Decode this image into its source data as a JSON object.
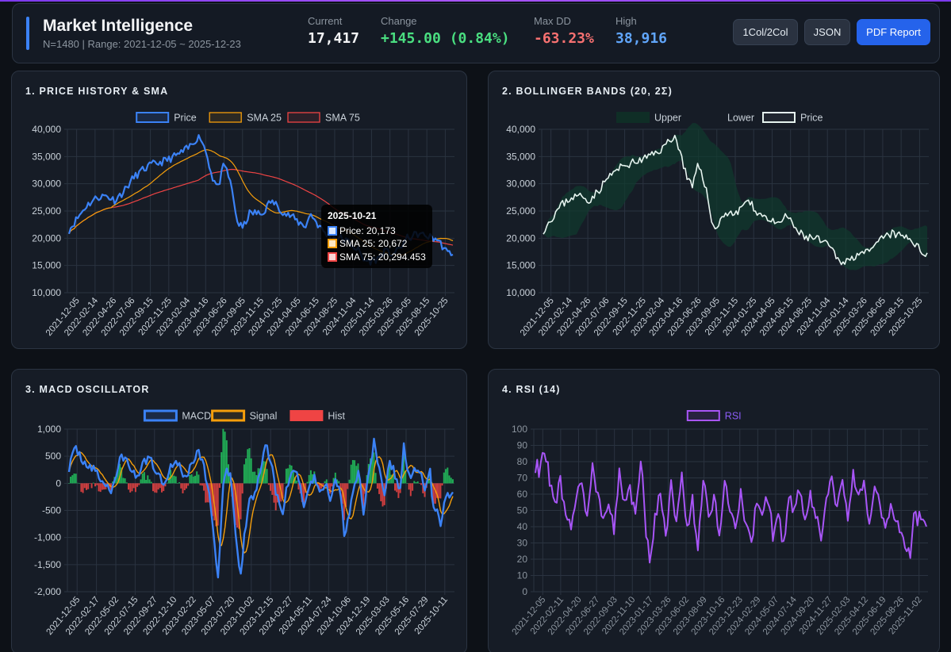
{
  "header": {
    "title": "Market Intelligence",
    "subtitle": "N=1480 | Range: 2021-12-05 ~ 2025-12-23",
    "stats": {
      "current": {
        "label": "Current",
        "value": "17,417"
      },
      "change": {
        "label": "Change",
        "value": "+145.00 (0.84%)"
      },
      "maxdd": {
        "label": "Max DD",
        "value": "-63.23%"
      },
      "high": {
        "label": "High",
        "value": "38,916"
      }
    },
    "buttons": {
      "layout": "1Col/2Col",
      "json": "JSON",
      "pdf": "PDF Report"
    }
  },
  "colors": {
    "price": "#3b82f6",
    "sma25": "#f59e0b",
    "sma75": "#ef4444",
    "bb_price": "#e6f4ef",
    "bb_band": "#0f3b2e",
    "macd": "#3b82f6",
    "signal": "#f59e0b",
    "hist_pos": "#22c55e",
    "hist_neg": "#ef4444",
    "rsi": "#a855f7",
    "green": "#4ade80",
    "red": "#f87171",
    "blue": "#60a5fa"
  },
  "panels": {
    "p1": {
      "title": "1. PRICE HISTORY & SMA"
    },
    "p2": {
      "title": "2. BOLLINGER BANDS (20, 2Σ)"
    },
    "p3": {
      "title": "3. MACD OSCILLATOR"
    },
    "p4": {
      "title": "4. RSI (14)"
    }
  },
  "tooltip": {
    "title": "2025-10-21",
    "rows": [
      "Price: 20,173",
      "SMA 25: 20,672",
      "SMA 75: 20,294.453"
    ]
  },
  "chart_data": [
    {
      "type": "line",
      "title": "1. PRICE HISTORY & SMA",
      "legend": [
        "Price",
        "SMA 25",
        "SMA 75"
      ],
      "ylim": [
        10000,
        40000
      ],
      "yticks": [
        10000,
        15000,
        20000,
        25000,
        30000,
        35000,
        40000
      ],
      "ytick_labels": [
        "10,000",
        "15,000",
        "20,000",
        "25,000",
        "30,000",
        "35,000",
        "40,000"
      ],
      "xtick_labels": [
        "2021-12-05",
        "2022-02-14",
        "2022-04-26",
        "2022-07-06",
        "2022-09-15",
        "2022-11-25",
        "2023-02-04",
        "2023-04-16",
        "2023-06-26",
        "2023-09-05",
        "2023-11-15",
        "2024-01-25",
        "2024-04-05",
        "2024-06-15",
        "2024-08-25",
        "2024-11-04",
        "2025-01-14",
        "2025-03-26",
        "2025-06-05",
        "2025-08-15",
        "2025-10-25"
      ],
      "anchors": [
        [
          0,
          21500
        ],
        [
          5,
          23800
        ],
        [
          10,
          26000
        ],
        [
          16,
          27500
        ],
        [
          21,
          27800
        ],
        [
          26,
          27000
        ],
        [
          31,
          28500
        ],
        [
          37,
          31200
        ],
        [
          42,
          32500
        ],
        [
          47,
          33500
        ],
        [
          52,
          33900
        ],
        [
          57,
          34500
        ],
        [
          63,
          35500
        ],
        [
          68,
          36500
        ],
        [
          73,
          38400
        ],
        [
          75,
          38600
        ],
        [
          78,
          36000
        ],
        [
          82,
          31000
        ],
        [
          85,
          29300
        ],
        [
          88,
          33000
        ],
        [
          90,
          32700
        ],
        [
          93,
          28800
        ],
        [
          96,
          23000
        ],
        [
          99,
          21800
        ],
        [
          103,
          24500
        ],
        [
          106,
          24700
        ],
        [
          110,
          24300
        ],
        [
          115,
          26800
        ],
        [
          119,
          26000
        ],
        [
          123,
          24500
        ],
        [
          127,
          24000
        ],
        [
          131,
          22900
        ],
        [
          135,
          22300
        ],
        [
          138,
          24500
        ],
        [
          142,
          22500
        ],
        [
          146,
          21000
        ],
        [
          149,
          20200
        ],
        [
          155,
          20000
        ],
        [
          160,
          19200
        ],
        [
          165,
          17800
        ],
        [
          168,
          16000
        ],
        [
          172,
          15800
        ],
        [
          176,
          16200
        ],
        [
          180,
          17600
        ],
        [
          184,
          17200
        ],
        [
          187,
          17500
        ],
        [
          193,
          20000
        ],
        [
          199,
          20800
        ],
        [
          205,
          20300
        ],
        [
          210,
          19800
        ],
        [
          213,
          18600
        ],
        [
          216,
          17200
        ],
        [
          219,
          17400
        ]
      ]
    },
    {
      "type": "line",
      "title": "2. BOLLINGER BANDS (20, 2Σ)",
      "legend": [
        "Upper",
        "Lower",
        "Price"
      ],
      "ylim": [
        10000,
        40000
      ],
      "yticks": [
        10000,
        15000,
        20000,
        25000,
        30000,
        35000,
        40000
      ],
      "ytick_labels": [
        "10,000",
        "15,000",
        "20,000",
        "25,000",
        "30,000",
        "35,000",
        "40,000"
      ],
      "xtick_labels": [
        "2021-12-05",
        "2022-02-14",
        "2022-04-26",
        "2022-07-06",
        "2022-09-15",
        "2022-11-25",
        "2023-02-04",
        "2023-04-16",
        "2023-06-26",
        "2023-09-05",
        "2023-11-15",
        "2024-01-25",
        "2024-04-05",
        "2024-06-15",
        "2024-08-25",
        "2024-11-04",
        "2025-01-14",
        "2025-03-26",
        "2025-06-05",
        "2025-08-15",
        "2025-10-25"
      ]
    },
    {
      "type": "line",
      "title": "3. MACD OSCILLATOR",
      "legend": [
        "MACD",
        "Signal",
        "Hist"
      ],
      "ylim": [
        -2000,
        1000
      ],
      "yticks": [
        -2000,
        -1500,
        -1000,
        -500,
        0,
        500,
        1000
      ],
      "ytick_labels": [
        "-2,000",
        "-1,500",
        "-1,000",
        "-500",
        "0",
        "500",
        "1,000"
      ],
      "xtick_labels": [
        "2021-12-05",
        "2022-02-17",
        "2022-05-02",
        "2022-07-15",
        "2022-09-27",
        "2022-12-10",
        "2023-02-22",
        "2023-05-07",
        "2023-07-20",
        "2023-10-02",
        "2023-12-15",
        "2024-02-27",
        "2024-05-11",
        "2024-07-24",
        "2024-10-06",
        "2024-12-19",
        "2025-03-03",
        "2025-05-16",
        "2025-07-29",
        "2025-10-11"
      ],
      "anchors": [
        [
          0,
          300
        ],
        [
          4,
          650
        ],
        [
          8,
          420
        ],
        [
          12,
          300
        ],
        [
          16,
          180
        ],
        [
          20,
          0
        ],
        [
          24,
          -150
        ],
        [
          28,
          300
        ],
        [
          30,
          500
        ],
        [
          34,
          380
        ],
        [
          38,
          70
        ],
        [
          42,
          350
        ],
        [
          46,
          500
        ],
        [
          50,
          200
        ],
        [
          54,
          10
        ],
        [
          58,
          330
        ],
        [
          62,
          400
        ],
        [
          66,
          80
        ],
        [
          70,
          370
        ],
        [
          74,
          600
        ],
        [
          77,
          280
        ],
        [
          80,
          -200
        ],
        [
          83,
          -1100
        ],
        [
          85,
          -1700
        ],
        [
          88,
          -100
        ],
        [
          90,
          250
        ],
        [
          92,
          100
        ],
        [
          95,
          -900
        ],
        [
          98,
          -1750
        ],
        [
          100,
          -1000
        ],
        [
          103,
          -300
        ],
        [
          106,
          -200
        ],
        [
          109,
          200
        ],
        [
          112,
          700
        ],
        [
          115,
          450
        ],
        [
          118,
          -200
        ],
        [
          122,
          -500
        ],
        [
          125,
          0
        ],
        [
          128,
          200
        ],
        [
          131,
          120
        ],
        [
          134,
          -400
        ],
        [
          137,
          -60
        ],
        [
          140,
          100
        ],
        [
          143,
          -150
        ],
        [
          146,
          0
        ],
        [
          149,
          -250
        ],
        [
          152,
          50
        ],
        [
          155,
          -200
        ],
        [
          157,
          -900
        ],
        [
          159,
          -700
        ],
        [
          162,
          -150
        ],
        [
          165,
          260
        ],
        [
          168,
          -500
        ],
        [
          171,
          150
        ],
        [
          174,
          800
        ],
        [
          177,
          200
        ],
        [
          180,
          -300
        ],
        [
          183,
          420
        ],
        [
          186,
          150
        ],
        [
          189,
          -150
        ],
        [
          191,
          700
        ],
        [
          194,
          100
        ],
        [
          197,
          300
        ],
        [
          200,
          200
        ],
        [
          203,
          -100
        ],
        [
          206,
          200
        ],
        [
          208,
          -500
        ],
        [
          210,
          -450
        ],
        [
          212,
          -750
        ],
        [
          214,
          -300
        ],
        [
          216,
          -200
        ]
      ]
    },
    {
      "type": "line",
      "title": "4. RSI (14)",
      "legend": [
        "RSI"
      ],
      "ylim": [
        0,
        100
      ],
      "yticks": [
        0,
        10,
        20,
        30,
        40,
        50,
        60,
        70,
        80,
        90,
        100
      ],
      "ytick_labels": [
        "0",
        "10",
        "20",
        "30",
        "40",
        "50",
        "60",
        "70",
        "80",
        "90",
        "100"
      ],
      "xtick_labels": [
        "2021-12-05",
        "2022-02-11",
        "2022-04-20",
        "2022-06-27",
        "2022-09-03",
        "2022-11-10",
        "2023-01-17",
        "2023-03-26",
        "2023-06-02",
        "2023-08-09",
        "2023-10-16",
        "2023-12-23",
        "2024-02-29",
        "2024-05-07",
        "2024-07-14",
        "2024-09-20",
        "2024-11-27",
        "2025-02-03",
        "2025-04-12",
        "2025-06-19",
        "2025-08-26",
        "2025-11-02"
      ],
      "anchors": [
        [
          0,
          78
        ],
        [
          2,
          75
        ],
        [
          4,
          88
        ],
        [
          6,
          80
        ],
        [
          8,
          70
        ],
        [
          11,
          55
        ],
        [
          14,
          68
        ],
        [
          17,
          48
        ],
        [
          20,
          42
        ],
        [
          23,
          60
        ],
        [
          26,
          63
        ],
        [
          29,
          50
        ],
        [
          32,
          75
        ],
        [
          35,
          62
        ],
        [
          38,
          45
        ],
        [
          41,
          58
        ],
        [
          44,
          35
        ],
        [
          47,
          72
        ],
        [
          50,
          55
        ],
        [
          53,
          65
        ],
        [
          56,
          45
        ],
        [
          59,
          83
        ],
        [
          62,
          35
        ],
        [
          64,
          20
        ],
        [
          67,
          45
        ],
        [
          70,
          60
        ],
        [
          73,
          35
        ],
        [
          76,
          65
        ],
        [
          79,
          40
        ],
        [
          82,
          70
        ],
        [
          85,
          42
        ],
        [
          88,
          55
        ],
        [
          91,
          28
        ],
        [
          94,
          70
        ],
        [
          97,
          45
        ],
        [
          100,
          60
        ],
        [
          103,
          35
        ],
        [
          106,
          68
        ],
        [
          109,
          50
        ],
        [
          112,
          40
        ],
        [
          115,
          62
        ],
        [
          118,
          38
        ],
        [
          121,
          30
        ],
        [
          124,
          55
        ],
        [
          127,
          45
        ],
        [
          130,
          60
        ],
        [
          133,
          35
        ],
        [
          136,
          48
        ],
        [
          139,
          28
        ],
        [
          142,
          58
        ],
        [
          145,
          50
        ],
        [
          148,
          62
        ],
        [
          151,
          40
        ],
        [
          154,
          58
        ],
        [
          157,
          45
        ],
        [
          160,
          35
        ],
        [
          163,
          55
        ],
        [
          166,
          70
        ],
        [
          169,
          50
        ],
        [
          172,
          65
        ],
        [
          175,
          45
        ],
        [
          178,
          75
        ],
        [
          181,
          55
        ],
        [
          184,
          68
        ],
        [
          187,
          45
        ],
        [
          190,
          60
        ],
        [
          193,
          55
        ],
        [
          196,
          40
        ],
        [
          199,
          52
        ],
        [
          202,
          45
        ],
        [
          205,
          38
        ],
        [
          208,
          25
        ],
        [
          210,
          20
        ],
        [
          212,
          50
        ],
        [
          214,
          45
        ]
      ]
    }
  ]
}
